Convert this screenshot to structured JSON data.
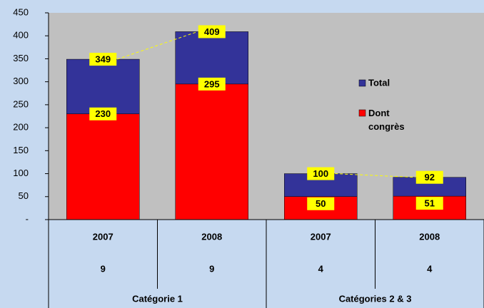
{
  "chart_data": {
    "type": "bar",
    "categories": [
      "2007",
      "2008",
      "2007",
      "2008"
    ],
    "counts": [
      9,
      9,
      4,
      4
    ],
    "groups": [
      "Catégorie 1",
      "Catégories 2 & 3"
    ],
    "series": [
      {
        "name": "Total",
        "color": "#333399",
        "values": [
          349,
          409,
          100,
          92
        ]
      },
      {
        "name": "Dont congrès",
        "color": "#ff0000",
        "values": [
          230,
          295,
          50,
          51
        ]
      }
    ],
    "ylim": [
      0,
      450
    ],
    "yticks": [
      {
        "value": 0,
        "label": "-"
      },
      50,
      100,
      150,
      200,
      250,
      300,
      350,
      400,
      450
    ]
  }
}
